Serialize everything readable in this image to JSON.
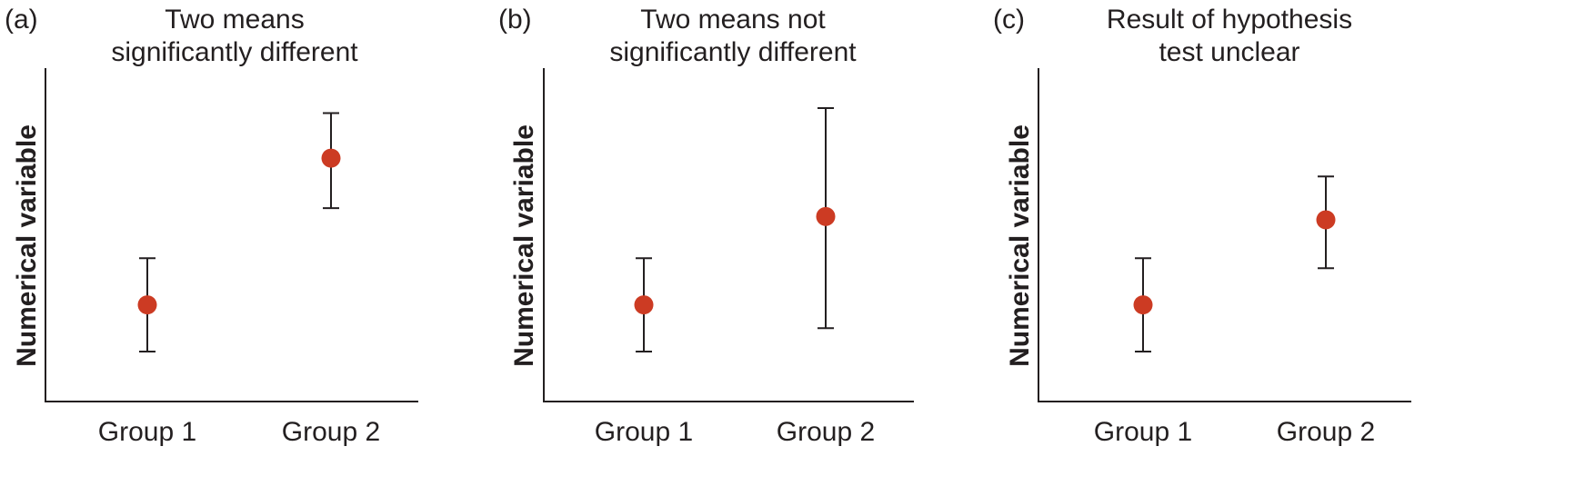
{
  "chart_data": [
    {
      "type": "scatter",
      "panel_label": "(a)",
      "title": [
        "Two means",
        "significantly different"
      ],
      "xlabel": "",
      "ylabel": "Numerical variable",
      "categories": [
        "Group 1",
        "Group 2"
      ],
      "ylim": [
        0,
        100
      ],
      "y_ticks_shown": false,
      "grid": false,
      "points": [
        {
          "category": "Group 1",
          "mean": 29,
          "lower": 15,
          "upper": 43
        },
        {
          "category": "Group 2",
          "mean": 73,
          "lower": 58,
          "upper": 86.5
        }
      ]
    },
    {
      "type": "scatter",
      "panel_label": "(b)",
      "title": [
        "Two means not",
        "significantly different"
      ],
      "xlabel": "",
      "ylabel": "Numerical variable",
      "categories": [
        "Group 1",
        "Group 2"
      ],
      "ylim": [
        0,
        100
      ],
      "y_ticks_shown": false,
      "grid": false,
      "points": [
        {
          "category": "Group 1",
          "mean": 29,
          "lower": 15,
          "upper": 43
        },
        {
          "category": "Group 2",
          "mean": 55.5,
          "lower": 22,
          "upper": 88
        }
      ]
    },
    {
      "type": "scatter",
      "panel_label": "(c)",
      "title": [
        "Result of hypothesis",
        "test unclear"
      ],
      "xlabel": "",
      "ylabel": "Numerical variable",
      "categories": [
        "Group 1",
        "Group 2"
      ],
      "ylim": [
        0,
        100
      ],
      "y_ticks_shown": false,
      "grid": false,
      "points": [
        {
          "category": "Group 1",
          "mean": 29,
          "lower": 15,
          "upper": 43
        },
        {
          "category": "Group 2",
          "mean": 54.5,
          "lower": 40,
          "upper": 67.5
        }
      ]
    }
  ],
  "colors": {
    "point": "#cc3b23",
    "axis": "#231f20",
    "text": "#231f20"
  }
}
